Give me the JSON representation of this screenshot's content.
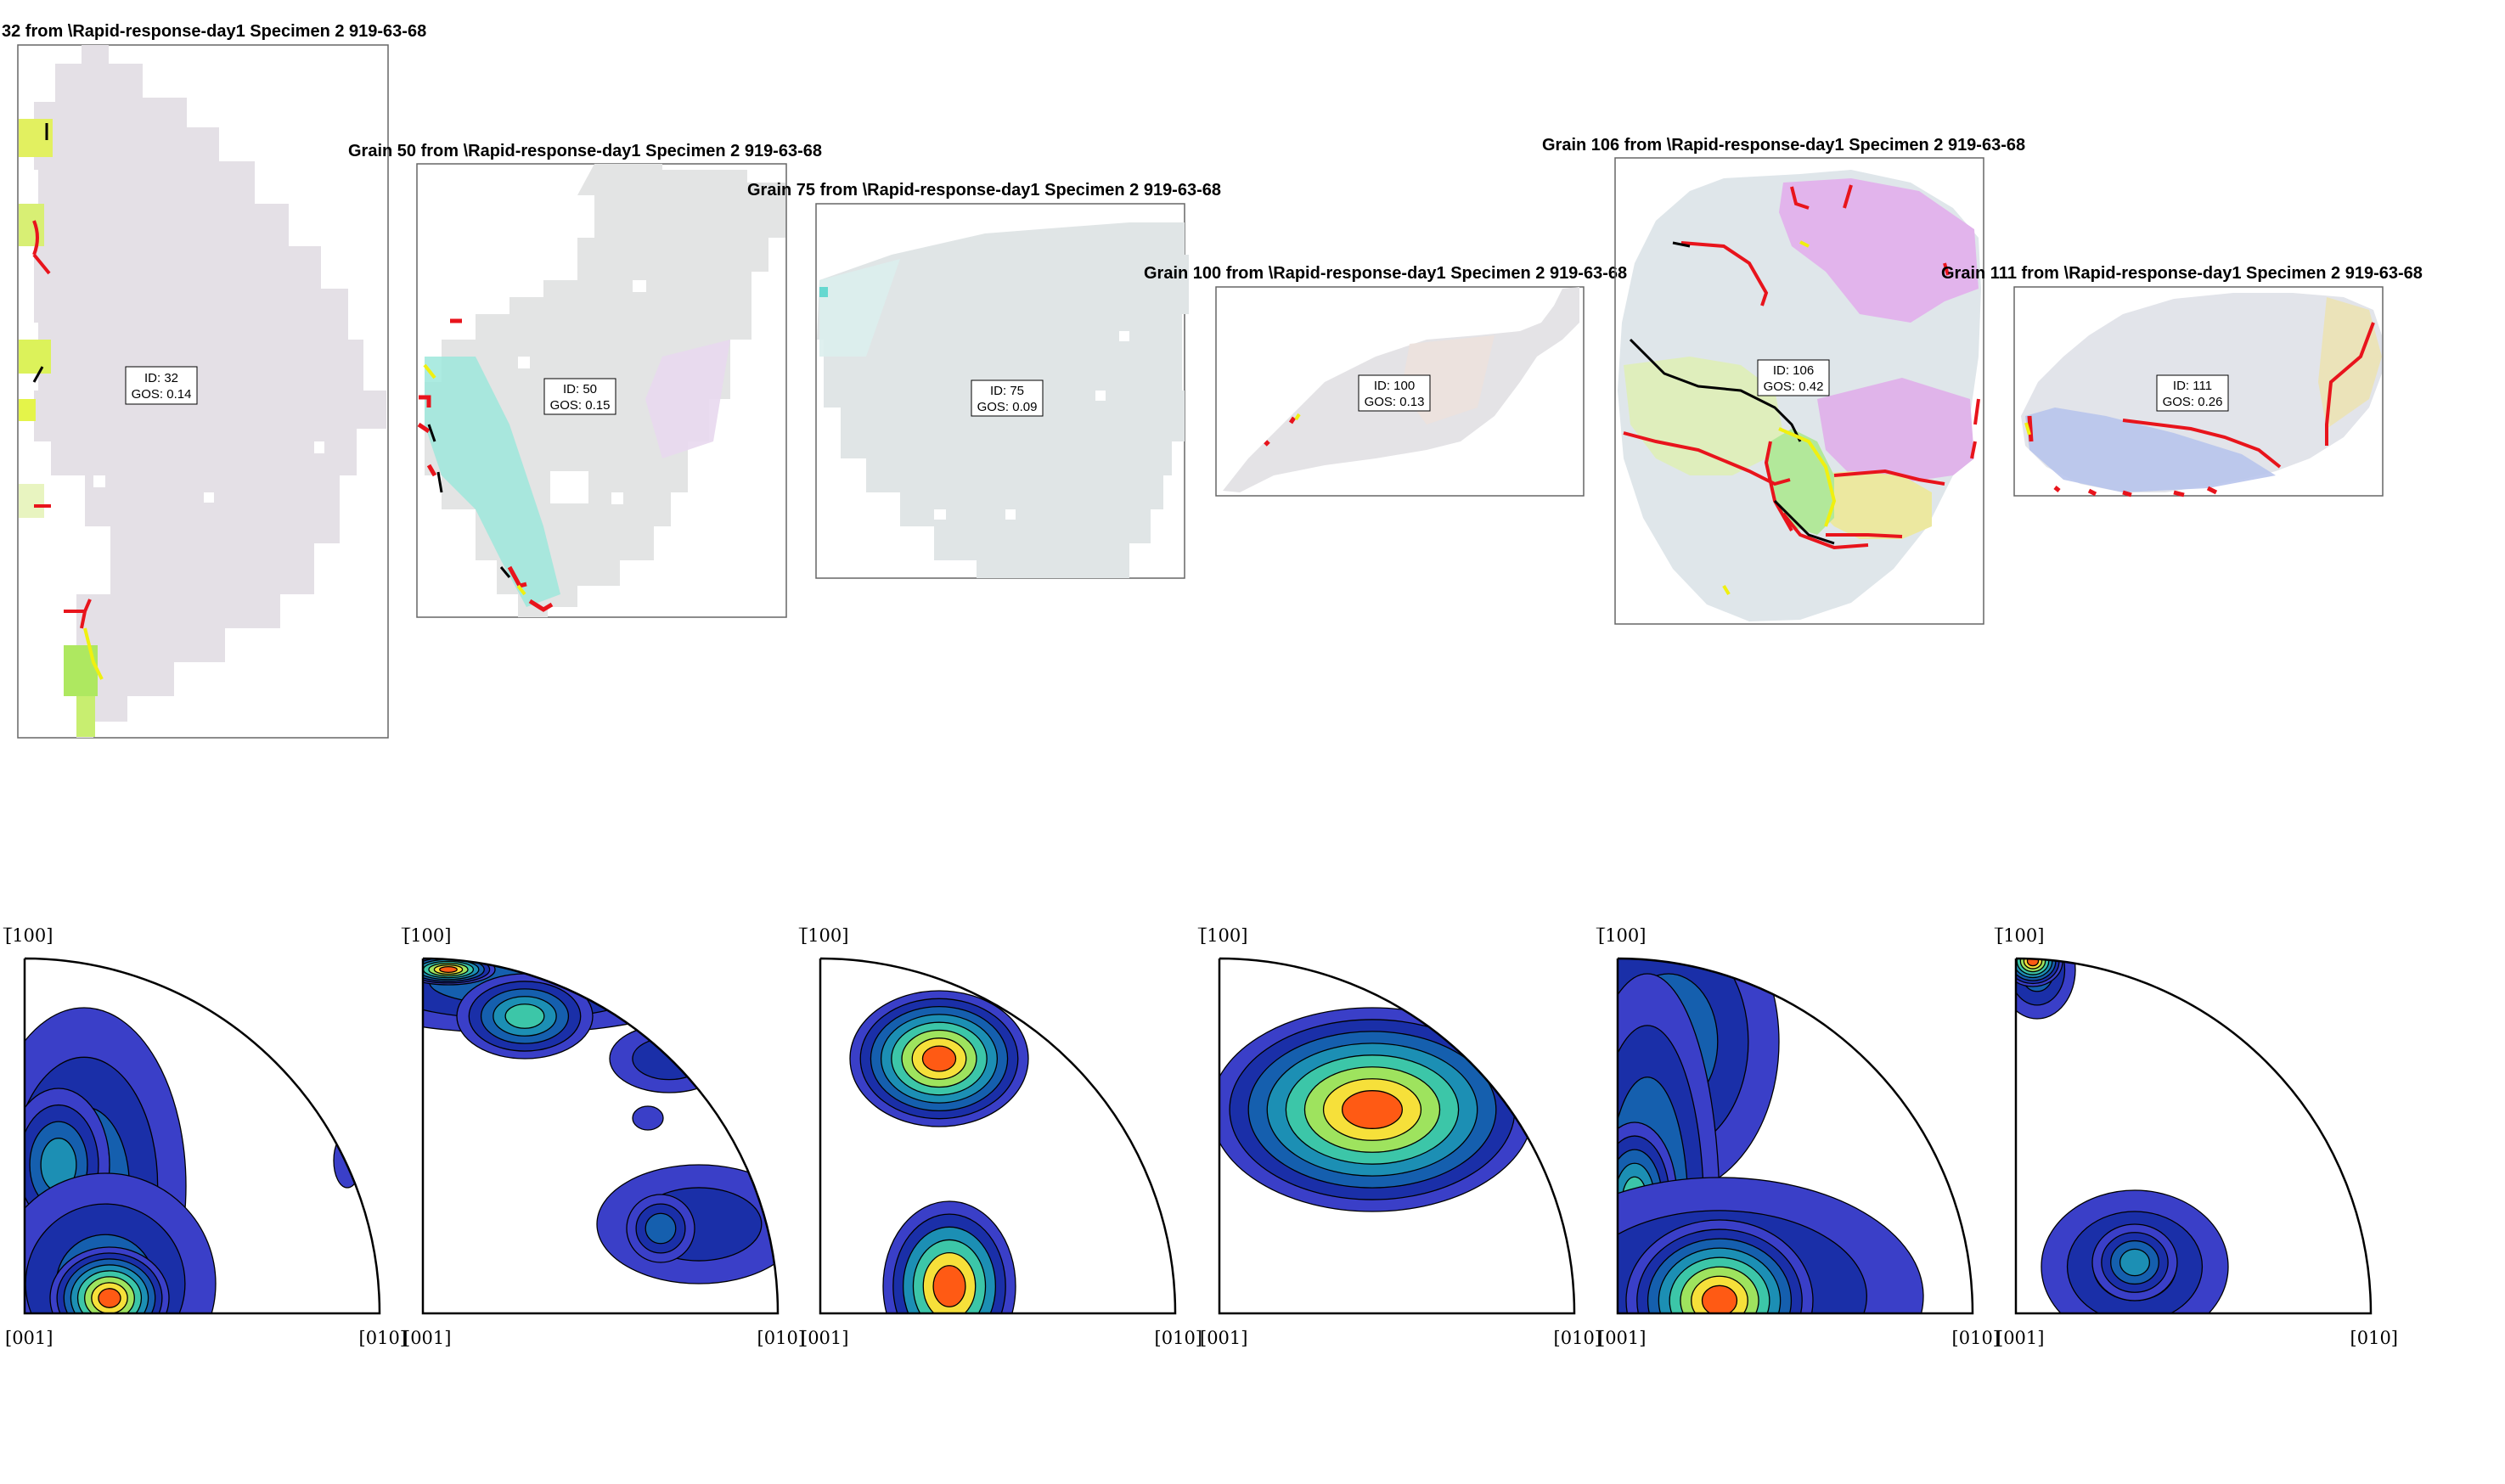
{
  "maps": [
    {
      "title": "32 from \\Rapid-response-day1 Specimen 2 919-63-68",
      "id_text": "ID: 32",
      "gos_text": "GOS: 0.14",
      "base_color": "#e4e0e6"
    },
    {
      "title": "Grain 50 from \\Rapid-response-day1 Specimen 2 919-63-68",
      "id_text": "ID: 50",
      "gos_text": "GOS: 0.15",
      "base_color": "#e3e4e4"
    },
    {
      "title": "Grain 75 from \\Rapid-response-day1 Specimen 2 919-63-68",
      "id_text": "ID: 75",
      "gos_text": "GOS: 0.09",
      "base_color": "#e0e5e6"
    },
    {
      "title": "Grain 100 from \\Rapid-response-day1 Specimen 2 919-63-68",
      "id_text": "ID: 100",
      "gos_text": "GOS: 0.13",
      "base_color": "#e4e3e6"
    },
    {
      "title": "Grain 106 from \\Rapid-response-day1 Specimen 2 919-63-68",
      "id_text": "ID: 106",
      "gos_text": "GOS: 0.42",
      "base_color": "#dfe6ea"
    },
    {
      "title": "Grain 111 from \\Rapid-response-day1 Specimen 2 919-63-68",
      "id_text": "ID: 111",
      "gos_text": "GOS: 0.26",
      "base_color": "#e2e4ea"
    }
  ],
  "pole_figures": [
    {
      "label_top": "[̅100]",
      "label_origin": "[001]",
      "label_right": "[010]"
    },
    {
      "label_top": "[̅100]",
      "label_origin": "[001]",
      "label_right": "[010]"
    },
    {
      "label_top": "[̅100]",
      "label_origin": "[001]",
      "label_right": "[010]"
    },
    {
      "label_top": "[̅100]",
      "label_origin": "[001]",
      "label_right": "[010]"
    },
    {
      "label_top": "[̅100]",
      "label_origin": "[001]",
      "label_right": "[010]"
    },
    {
      "label_top": "[̅100]",
      "label_origin": "[001]",
      "label_right": "[010]"
    }
  ],
  "colors": {
    "boundary_high": "#e8141c",
    "boundary_low": "#000000",
    "boundary_twin": "#f0f010",
    "contour_levels": [
      "#3a3fc8",
      "#1a2fa8",
      "#155fae",
      "#1c8fb4",
      "#3cc6a8",
      "#9ee35e",
      "#f6e03a",
      "#ff5a14"
    ]
  }
}
